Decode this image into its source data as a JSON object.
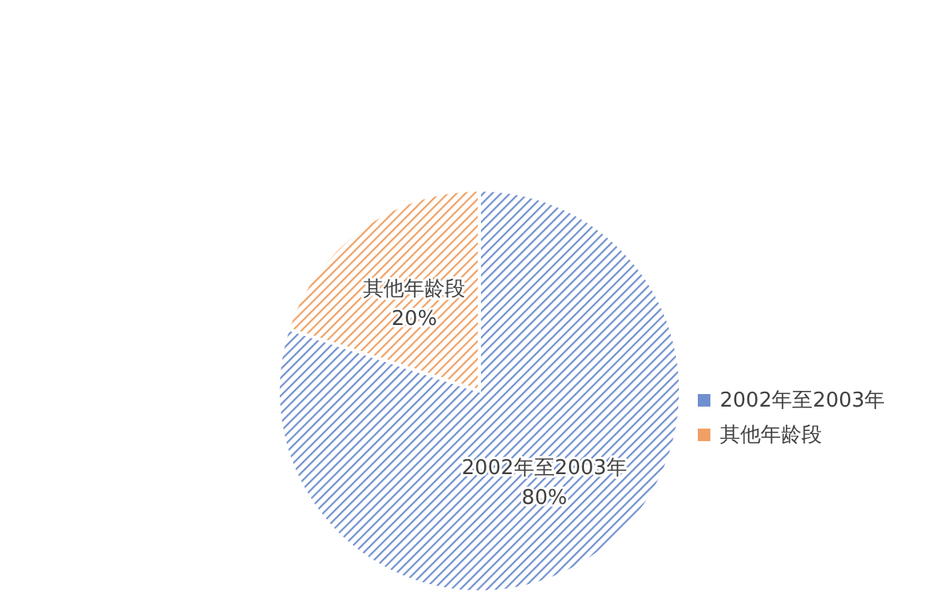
{
  "chart_data": {
    "type": "pie",
    "categories": [
      "2002年至2003年",
      "其他年龄段"
    ],
    "values": [
      80,
      20
    ],
    "colors": [
      "#6f8fcf",
      "#f0a064"
    ],
    "value_labels": [
      "80%",
      "20%"
    ],
    "legend": "right"
  }
}
